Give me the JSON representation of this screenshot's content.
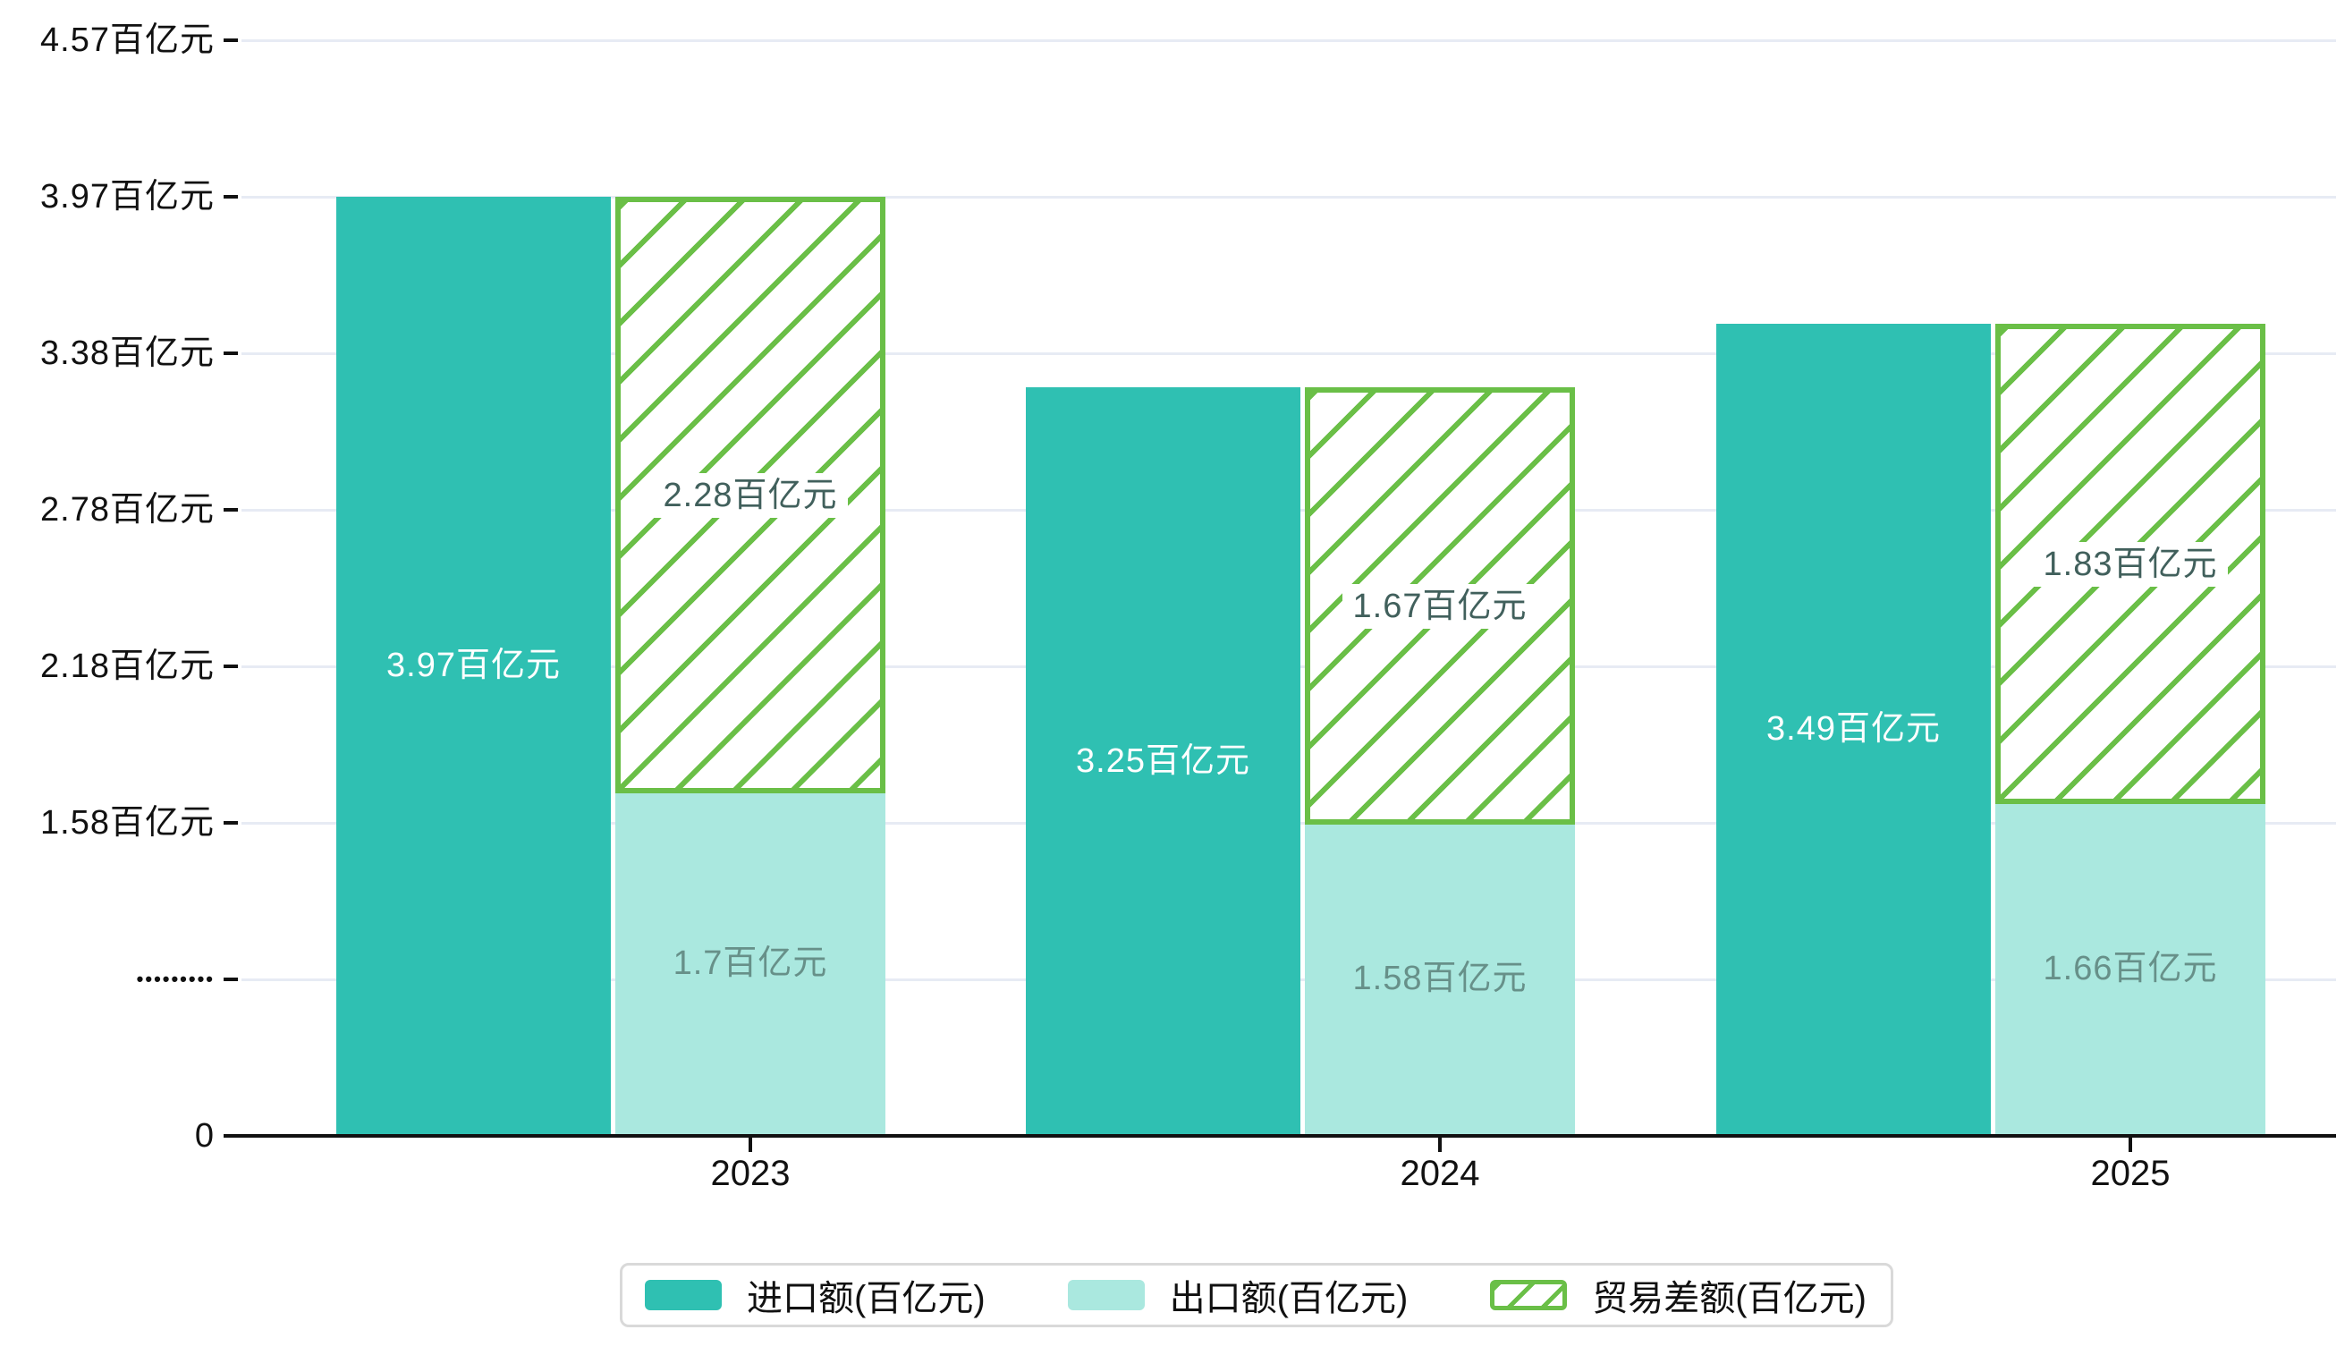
{
  "page": {
    "background": "#ffffff"
  },
  "chart_data": {
    "type": "bar",
    "title": "",
    "unit": "百亿元",
    "categories": [
      "2023",
      "2024",
      "2025"
    ],
    "series": [
      {
        "name": "进口额(百亿元)",
        "role": "import",
        "values": [
          3.97,
          3.25,
          3.49
        ],
        "labels": [
          "3.97百亿元",
          "3.25百亿元",
          "3.49百亿元"
        ],
        "color": "#2fc0b2",
        "label_color": "#ffffff",
        "style": "solid"
      },
      {
        "name": "出口额(百亿元)",
        "role": "export",
        "values": [
          1.7,
          1.58,
          1.66
        ],
        "labels": [
          "1.7百亿元",
          "1.58百亿元",
          "1.66百亿元"
        ],
        "color": "#aae8df",
        "label_color": "#679089",
        "style": "solid"
      },
      {
        "name": "贸易差额(百亿元)",
        "role": "trade-balance",
        "values": [
          2.28,
          1.67,
          1.83
        ],
        "labels": [
          "2.28百亿元",
          "1.67百亿元",
          "1.83百亿元"
        ],
        "color": "#ffffff",
        "hatch_color": "#6abf47",
        "label_color": "#41605c",
        "style": "hatched",
        "stacked_on": "出口额(百亿元)"
      }
    ],
    "y_axis": {
      "ticks": [
        {
          "value": 0,
          "label": "0"
        },
        {
          "value": 0.98,
          "label": "•••••••••",
          "style": "dots"
        },
        {
          "value": 1.58,
          "label": "1.58百亿元"
        },
        {
          "value": 2.18,
          "label": "2.18百亿元"
        },
        {
          "value": 2.78,
          "label": "2.78百亿元"
        },
        {
          "value": 3.38,
          "label": "3.38百亿元"
        },
        {
          "value": 3.97,
          "label": "3.97百亿元"
        },
        {
          "value": 4.57,
          "label": "4.57百亿元"
        }
      ]
    },
    "x_axis": {
      "tick_labels": [
        "2023",
        "2024",
        "2025"
      ]
    },
    "grid": true,
    "legend": {
      "position": "bottom",
      "items": [
        "进口额(百亿元)",
        "出口额(百亿元)",
        "贸易差额(百亿元)"
      ]
    },
    "colors": {
      "gridline": "#e7ebf4",
      "axis": "#111111",
      "legend_border": "#d9d9d9"
    }
  }
}
